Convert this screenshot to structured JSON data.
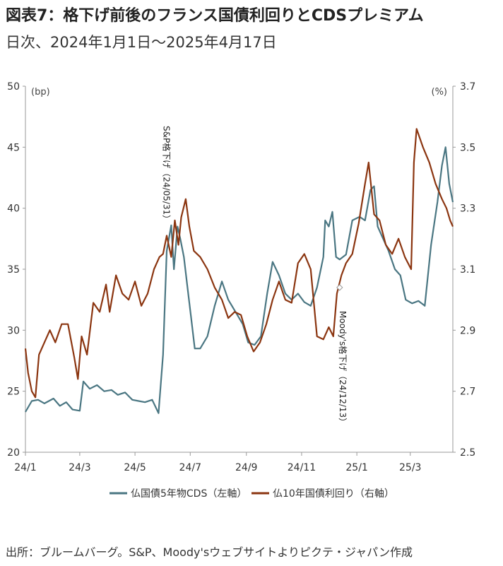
{
  "title": "図表7：格下げ前後のフランス国債利回りとCDSプレミアム",
  "subtitle": "日次、2024年1月1日～2025年4月17日",
  "source": "出所：ブルームバーグ。S&P、Moody'sウェブサイトよりピクテ・ジャパン作成",
  "colors": {
    "cds": "#4a7682",
    "yield": "#8b3510",
    "axis": "#999999"
  },
  "chart_data": {
    "type": "line",
    "x_ticks": [
      "24/1",
      "24/3",
      "24/5",
      "24/7",
      "24/9",
      "24/11",
      "25/1",
      "25/3"
    ],
    "x_range": [
      "2024-01-01",
      "2025-04-17"
    ],
    "left_axis": {
      "unit": "(bp)",
      "ticks": [
        "20",
        "25",
        "30",
        "35",
        "40",
        "45",
        "50"
      ],
      "range": [
        20,
        50
      ]
    },
    "right_axis": {
      "unit": "(%)",
      "ticks": [
        "2.5",
        "2.7",
        "2.9",
        "3.1",
        "3.3",
        "3.5",
        "3.7"
      ],
      "range": [
        2.5,
        3.7
      ]
    },
    "series": [
      {
        "name": "仏国債5年物CDS（左軸）",
        "axis": "left",
        "points": [
          [
            "2024-01-01",
            23.3
          ],
          [
            "2024-01-08",
            24.2
          ],
          [
            "2024-01-15",
            24.3
          ],
          [
            "2024-01-22",
            24.0
          ],
          [
            "2024-02-01",
            24.4
          ],
          [
            "2024-02-08",
            23.8
          ],
          [
            "2024-02-15",
            24.1
          ],
          [
            "2024-02-22",
            23.5
          ],
          [
            "2024-03-01",
            23.4
          ],
          [
            "2024-03-05",
            25.8
          ],
          [
            "2024-03-12",
            25.2
          ],
          [
            "2024-03-20",
            25.5
          ],
          [
            "2024-03-28",
            25.0
          ],
          [
            "2024-04-05",
            25.1
          ],
          [
            "2024-04-12",
            24.7
          ],
          [
            "2024-04-20",
            24.9
          ],
          [
            "2024-04-28",
            24.3
          ],
          [
            "2024-05-05",
            24.2
          ],
          [
            "2024-05-12",
            24.1
          ],
          [
            "2024-05-20",
            24.3
          ],
          [
            "2024-05-27",
            23.2
          ],
          [
            "2024-06-01",
            28.0
          ],
          [
            "2024-06-05",
            36.5
          ],
          [
            "2024-06-10",
            38.6
          ],
          [
            "2024-06-13",
            35.0
          ],
          [
            "2024-06-17",
            38.5
          ],
          [
            "2024-06-20",
            37.5
          ],
          [
            "2024-06-24",
            36.0
          ],
          [
            "2024-06-28",
            33.5
          ],
          [
            "2024-07-02",
            31.0
          ],
          [
            "2024-07-06",
            28.5
          ],
          [
            "2024-07-12",
            28.5
          ],
          [
            "2024-07-20",
            29.5
          ],
          [
            "2024-07-28",
            32.0
          ],
          [
            "2024-08-05",
            34.0
          ],
          [
            "2024-08-12",
            32.5
          ],
          [
            "2024-08-20",
            31.5
          ],
          [
            "2024-08-28",
            30.5
          ],
          [
            "2024-09-03",
            29.0
          ],
          [
            "2024-09-10",
            28.8
          ],
          [
            "2024-09-17",
            29.5
          ],
          [
            "2024-09-24",
            33.0
          ],
          [
            "2024-09-30",
            35.6
          ],
          [
            "2024-10-07",
            34.5
          ],
          [
            "2024-10-14",
            33.0
          ],
          [
            "2024-10-21",
            32.5
          ],
          [
            "2024-10-28",
            33.0
          ],
          [
            "2024-11-04",
            32.3
          ],
          [
            "2024-11-11",
            32.0
          ],
          [
            "2024-11-18",
            33.5
          ],
          [
            "2024-11-25",
            36.0
          ],
          [
            "2024-11-27",
            39.0
          ],
          [
            "2024-12-01",
            38.5
          ],
          [
            "2024-12-05",
            39.7
          ],
          [
            "2024-12-09",
            36.0
          ],
          [
            "2024-12-13",
            35.8
          ],
          [
            "2024-12-20",
            36.2
          ],
          [
            "2024-12-27",
            39.0
          ],
          [
            "2025-01-04",
            39.3
          ],
          [
            "2025-01-10",
            39.0
          ],
          [
            "2025-01-16",
            41.5
          ],
          [
            "2025-01-20",
            41.8
          ],
          [
            "2025-01-24",
            38.5
          ],
          [
            "2025-01-30",
            37.5
          ],
          [
            "2025-02-05",
            36.5
          ],
          [
            "2025-02-12",
            35.0
          ],
          [
            "2025-02-18",
            34.5
          ],
          [
            "2025-02-24",
            32.5
          ],
          [
            "2025-03-03",
            32.2
          ],
          [
            "2025-03-10",
            32.4
          ],
          [
            "2025-03-17",
            32.0
          ],
          [
            "2025-03-24",
            37.0
          ],
          [
            "2025-03-31",
            40.5
          ],
          [
            "2025-04-05",
            43.5
          ],
          [
            "2025-04-09",
            45.0
          ],
          [
            "2025-04-13",
            42.0
          ],
          [
            "2025-04-17",
            40.5
          ]
        ]
      },
      {
        "name": "仏10年国債利回り（右軸）",
        "axis": "right",
        "points": [
          [
            "2024-01-01",
            2.84
          ],
          [
            "2024-01-04",
            2.76
          ],
          [
            "2024-01-08",
            2.7
          ],
          [
            "2024-01-12",
            2.68
          ],
          [
            "2024-01-16",
            2.82
          ],
          [
            "2024-01-22",
            2.86
          ],
          [
            "2024-01-28",
            2.9
          ],
          [
            "2024-02-03",
            2.86
          ],
          [
            "2024-02-10",
            2.92
          ],
          [
            "2024-02-17",
            2.92
          ],
          [
            "2024-02-24",
            2.81
          ],
          [
            "2024-02-28",
            2.74
          ],
          [
            "2024-03-03",
            2.88
          ],
          [
            "2024-03-09",
            2.82
          ],
          [
            "2024-03-16",
            2.99
          ],
          [
            "2024-03-23",
            2.96
          ],
          [
            "2024-03-30",
            3.05
          ],
          [
            "2024-04-03",
            2.96
          ],
          [
            "2024-04-10",
            3.08
          ],
          [
            "2024-04-17",
            3.02
          ],
          [
            "2024-04-24",
            3.0
          ],
          [
            "2024-05-01",
            3.06
          ],
          [
            "2024-05-08",
            2.98
          ],
          [
            "2024-05-15",
            3.02
          ],
          [
            "2024-05-22",
            3.1
          ],
          [
            "2024-05-28",
            3.14
          ],
          [
            "2024-06-01",
            3.15
          ],
          [
            "2024-06-05",
            3.21
          ],
          [
            "2024-06-10",
            3.14
          ],
          [
            "2024-06-14",
            3.26
          ],
          [
            "2024-06-18",
            3.18
          ],
          [
            "2024-06-21",
            3.27
          ],
          [
            "2024-06-26",
            3.33
          ],
          [
            "2024-06-30",
            3.24
          ],
          [
            "2024-07-05",
            3.16
          ],
          [
            "2024-07-12",
            3.14
          ],
          [
            "2024-07-20",
            3.1
          ],
          [
            "2024-07-28",
            3.04
          ],
          [
            "2024-08-05",
            3.0
          ],
          [
            "2024-08-12",
            2.94
          ],
          [
            "2024-08-19",
            2.96
          ],
          [
            "2024-08-26",
            2.95
          ],
          [
            "2024-09-02",
            2.88
          ],
          [
            "2024-09-09",
            2.83
          ],
          [
            "2024-09-16",
            2.86
          ],
          [
            "2024-09-23",
            2.92
          ],
          [
            "2024-09-30",
            3.0
          ],
          [
            "2024-10-07",
            3.06
          ],
          [
            "2024-10-14",
            3.0
          ],
          [
            "2024-10-21",
            2.99
          ],
          [
            "2024-10-28",
            3.12
          ],
          [
            "2024-11-04",
            3.15
          ],
          [
            "2024-11-11",
            3.1
          ],
          [
            "2024-11-18",
            2.88
          ],
          [
            "2024-11-25",
            2.87
          ],
          [
            "2024-12-01",
            2.91
          ],
          [
            "2024-12-06",
            2.88
          ],
          [
            "2024-12-10",
            3.02
          ],
          [
            "2024-12-15",
            3.08
          ],
          [
            "2024-12-20",
            3.12
          ],
          [
            "2024-12-27",
            3.15
          ],
          [
            "2025-01-03",
            3.25
          ],
          [
            "2025-01-10",
            3.38
          ],
          [
            "2025-01-14",
            3.45
          ],
          [
            "2025-01-20",
            3.28
          ],
          [
            "2025-01-26",
            3.26
          ],
          [
            "2025-02-02",
            3.18
          ],
          [
            "2025-02-09",
            3.15
          ],
          [
            "2025-02-16",
            3.2
          ],
          [
            "2025-02-23",
            3.14
          ],
          [
            "2025-03-02",
            3.1
          ],
          [
            "2025-03-05",
            3.45
          ],
          [
            "2025-03-08",
            3.56
          ],
          [
            "2025-03-15",
            3.5
          ],
          [
            "2025-03-22",
            3.45
          ],
          [
            "2025-03-29",
            3.38
          ],
          [
            "2025-04-05",
            3.33
          ],
          [
            "2025-04-10",
            3.3
          ],
          [
            "2025-04-14",
            3.26
          ],
          [
            "2025-04-17",
            3.24
          ]
        ]
      }
    ],
    "markers": [
      {
        "date": "2024-12-13",
        "value": 3.04,
        "axis": "right"
      }
    ],
    "annotations": [
      {
        "text": "S&P格下げ（24/05/31）",
        "date": "2024-05-31"
      },
      {
        "text": "Moody's格下げ（24/12/13）",
        "date": "2024-12-13"
      }
    ],
    "legend_placement": "bottom-center",
    "grid": false
  }
}
